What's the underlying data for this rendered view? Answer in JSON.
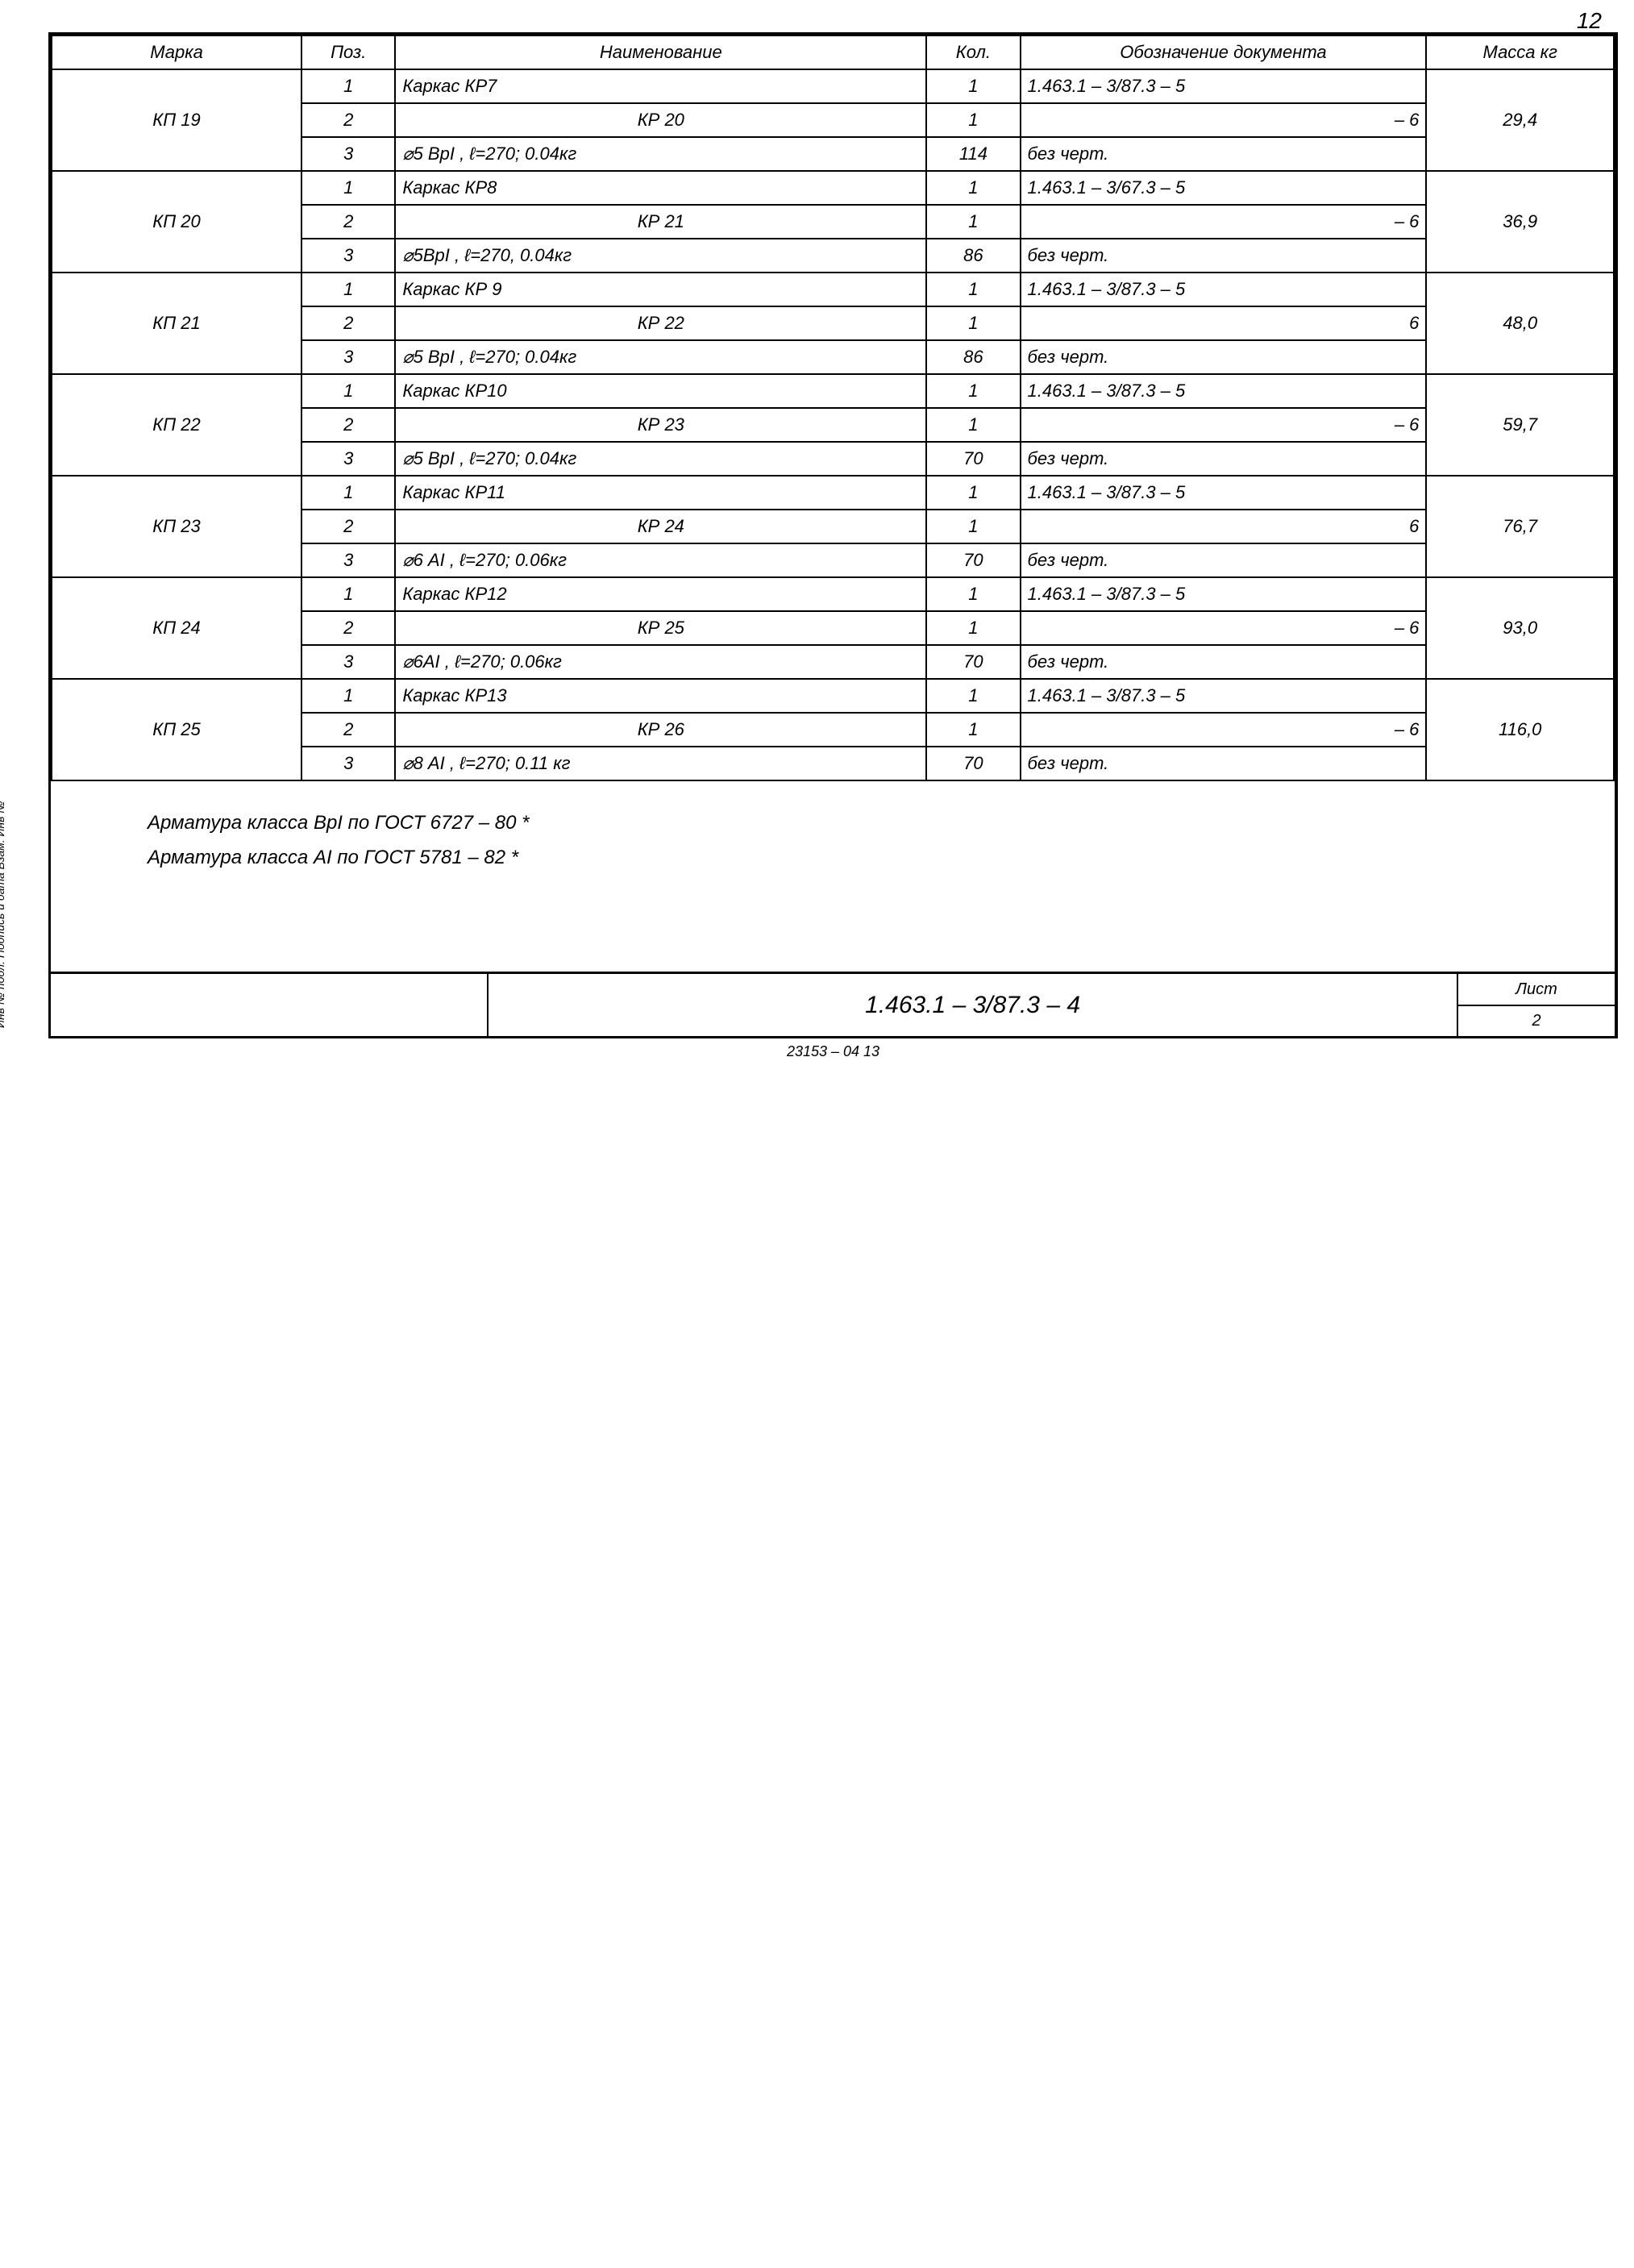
{
  "page_number": "12",
  "headers": {
    "marka": "Марка",
    "poz": "Поз.",
    "naim": "Наименование",
    "kol": "Кол.",
    "oboz": "Обозначение документа",
    "massa": "Масса кг"
  },
  "groups": [
    {
      "marka": "КП 19",
      "massa": "29,4",
      "rows": [
        {
          "poz": "1",
          "naim": "Каркас  КР7",
          "kol": "1",
          "oboz": "1.463.1 – 3/87.3 – 5"
        },
        {
          "poz": "2",
          "naim": "КР 20",
          "kol": "1",
          "oboz": "– 6",
          "naim_center": true,
          "oboz_right": true
        },
        {
          "poz": "3",
          "naim": "⌀5 ВрI , ℓ=270; 0.04кг",
          "kol": "114",
          "oboz": "без черт."
        }
      ]
    },
    {
      "marka": "КП 20",
      "massa": "36,9",
      "rows": [
        {
          "poz": "1",
          "naim": "Каркас  КР8",
          "kol": "1",
          "oboz": "1.463.1 – 3/67.3 – 5"
        },
        {
          "poz": "2",
          "naim": "КР 21",
          "kol": "1",
          "oboz": "– 6",
          "naim_center": true,
          "oboz_right": true
        },
        {
          "poz": "3",
          "naim": "⌀5ВрI , ℓ=270, 0.04кг",
          "kol": "86",
          "oboz": "без черт."
        }
      ]
    },
    {
      "marka": "КП 21",
      "massa": "48,0",
      "rows": [
        {
          "poz": "1",
          "naim": "Каркас  КР 9",
          "kol": "1",
          "oboz": "1.463.1 – 3/87.3 – 5"
        },
        {
          "poz": "2",
          "naim": "КР 22",
          "kol": "1",
          "oboz": "6",
          "naim_center": true,
          "oboz_right": true
        },
        {
          "poz": "3",
          "naim": "⌀5 ВрI , ℓ=270; 0.04кг",
          "kol": "86",
          "oboz": "без черт."
        }
      ]
    },
    {
      "marka": "КП 22",
      "massa": "59,7",
      "rows": [
        {
          "poz": "1",
          "naim": "Каркас  КР10",
          "kol": "1",
          "oboz": "1.463.1 – 3/87.3 – 5"
        },
        {
          "poz": "2",
          "naim": "КР 23",
          "kol": "1",
          "oboz": "– 6",
          "naim_center": true,
          "oboz_right": true
        },
        {
          "poz": "3",
          "naim": "⌀5 ВрI , ℓ=270; 0.04кг",
          "kol": "70",
          "oboz": "без черт."
        }
      ]
    },
    {
      "marka": "КП 23",
      "massa": "76,7",
      "rows": [
        {
          "poz": "1",
          "naim": "Каркас  КР11",
          "kol": "1",
          "oboz": "1.463.1 – 3/87.3 – 5"
        },
        {
          "poz": "2",
          "naim": "КР 24",
          "kol": "1",
          "oboz": "6",
          "naim_center": true,
          "oboz_right": true
        },
        {
          "poz": "3",
          "naim": "⌀6 АI , ℓ=270; 0.06кг",
          "kol": "70",
          "oboz": "без черт."
        }
      ]
    },
    {
      "marka": "КП 24",
      "massa": "93,0",
      "rows": [
        {
          "poz": "1",
          "naim": "Каркас  КР12",
          "kol": "1",
          "oboz": "1.463.1 – 3/87.3 – 5"
        },
        {
          "poz": "2",
          "naim": "КР 25",
          "kol": "1",
          "oboz": "– 6",
          "naim_center": true,
          "oboz_right": true
        },
        {
          "poz": "3",
          "naim": "⌀6АI , ℓ=270; 0.06кг",
          "kol": "70",
          "oboz": "без черт."
        }
      ]
    },
    {
      "marka": "КП 25",
      "massa": "116,0",
      "rows": [
        {
          "poz": "1",
          "naim": "Каркас  КР13",
          "kol": "1",
          "oboz": "1.463.1 – 3/87.3 – 5"
        },
        {
          "poz": "2",
          "naim": "КР 26",
          "kol": "1",
          "oboz": "– 6",
          "naim_center": true,
          "oboz_right": true
        },
        {
          "poz": "3",
          "naim": "⌀8 АI , ℓ=270; 0.11 кг",
          "kol": "70",
          "oboz": "без черт."
        }
      ]
    }
  ],
  "notes": [
    "Арматура   класса   ВрI   по   ГОСТ  6727 – 80 *",
    "Арматура   класса   АI   по   ГОСТ  5781 – 82 *"
  ],
  "title_block": {
    "doc_number": "1.463.1 – 3/87.3 – 4",
    "list_label": "Лист",
    "list_number": "2"
  },
  "side_label": "Инв № подл.  Подпись и дата  Взам. Инв №",
  "footer": "23153 – 04        13"
}
